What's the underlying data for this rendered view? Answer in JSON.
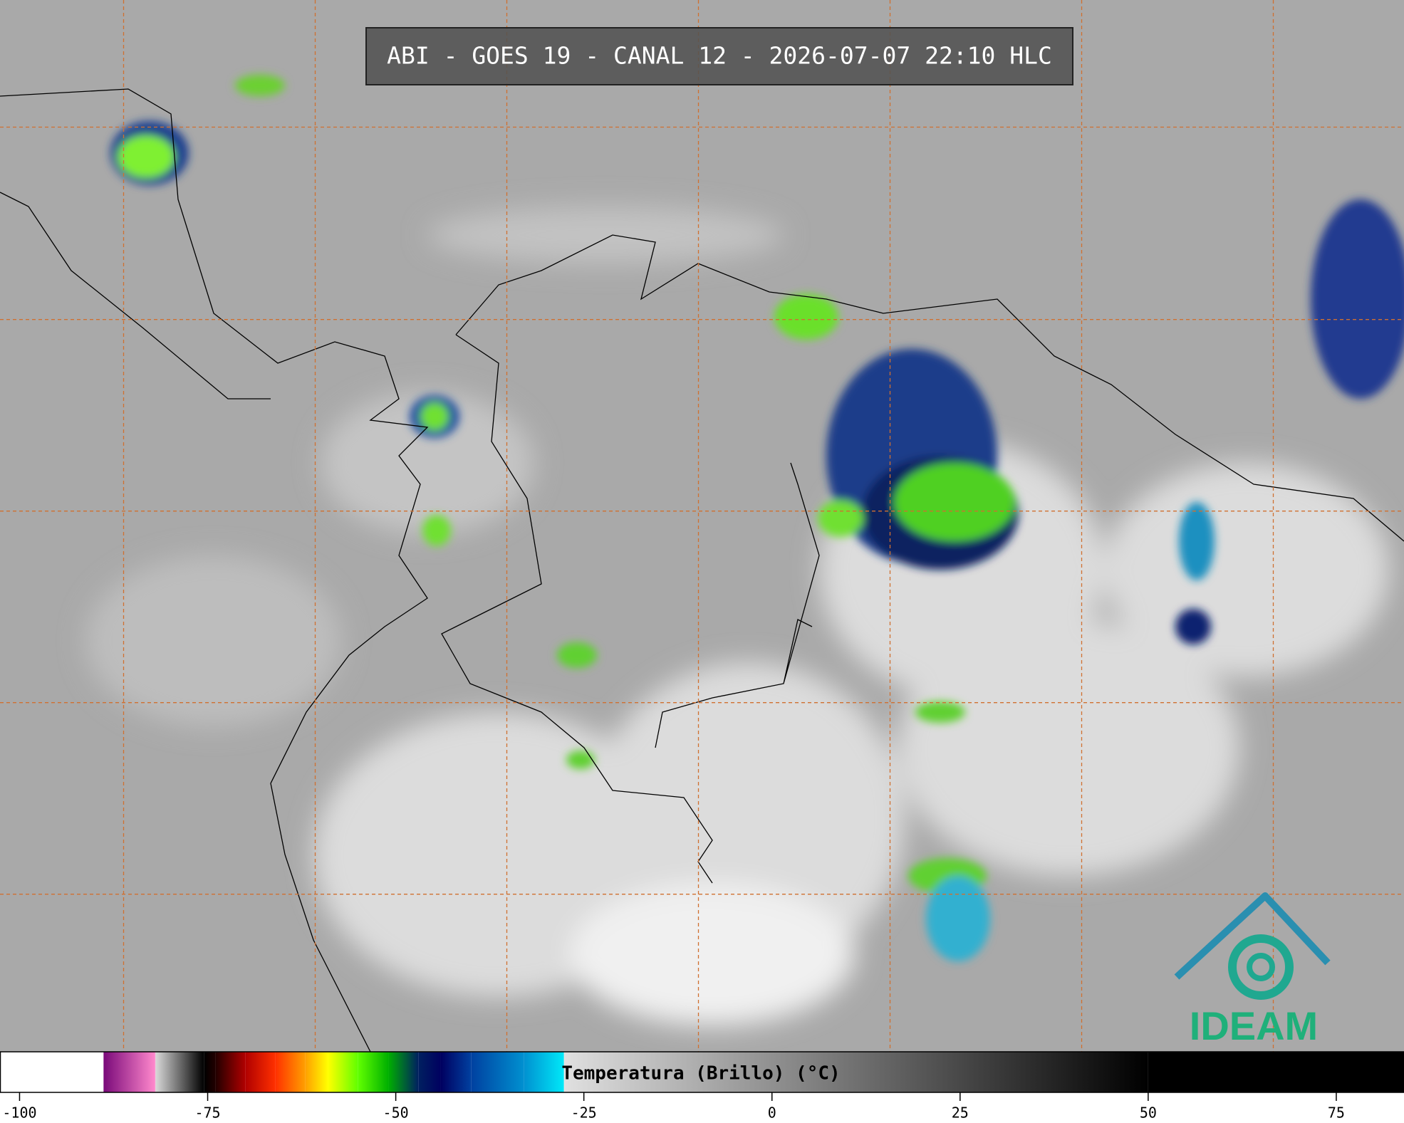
{
  "header": {
    "title": "ABI - GOES 19 - CANAL 12 - 2026-07-07 22:10 HLC"
  },
  "colorbar": {
    "label": "Temperatura (Brillo) (°C)",
    "lim": [
      -102.6,
      84
    ],
    "ticks": [
      -100,
      -75,
      -50,
      -25,
      0,
      25,
      50,
      75
    ],
    "stops": [
      {
        "value": -102.6,
        "color": "#ffffff"
      },
      {
        "value": -88.9,
        "color": "#ffffff"
      },
      {
        "value": -88.8,
        "color": "#7a0a7a"
      },
      {
        "value": -82,
        "color": "#ff88cc"
      },
      {
        "value": -81.9,
        "color": "#d8d8d8"
      },
      {
        "value": -75.5,
        "color": "#000000"
      },
      {
        "value": -74,
        "color": "#200000"
      },
      {
        "value": -70,
        "color": "#b00000"
      },
      {
        "value": -66,
        "color": "#ff3000"
      },
      {
        "value": -62,
        "color": "#ffa000"
      },
      {
        "value": -59,
        "color": "#ffff00"
      },
      {
        "value": -55,
        "color": "#60ff00"
      },
      {
        "value": -51,
        "color": "#00b000"
      },
      {
        "value": -47,
        "color": "#002060"
      },
      {
        "value": -44,
        "color": "#000060"
      },
      {
        "value": -40,
        "color": "#0040a0"
      },
      {
        "value": -33,
        "color": "#0090d0"
      },
      {
        "value": -27.7,
        "color": "#00e8f8"
      },
      {
        "value": -27.6,
        "color": "#e0e0e0"
      },
      {
        "value": 50,
        "color": "#000000"
      },
      {
        "value": 84,
        "color": "#000000"
      }
    ]
  },
  "logo": {
    "text": "IDEAM"
  }
}
